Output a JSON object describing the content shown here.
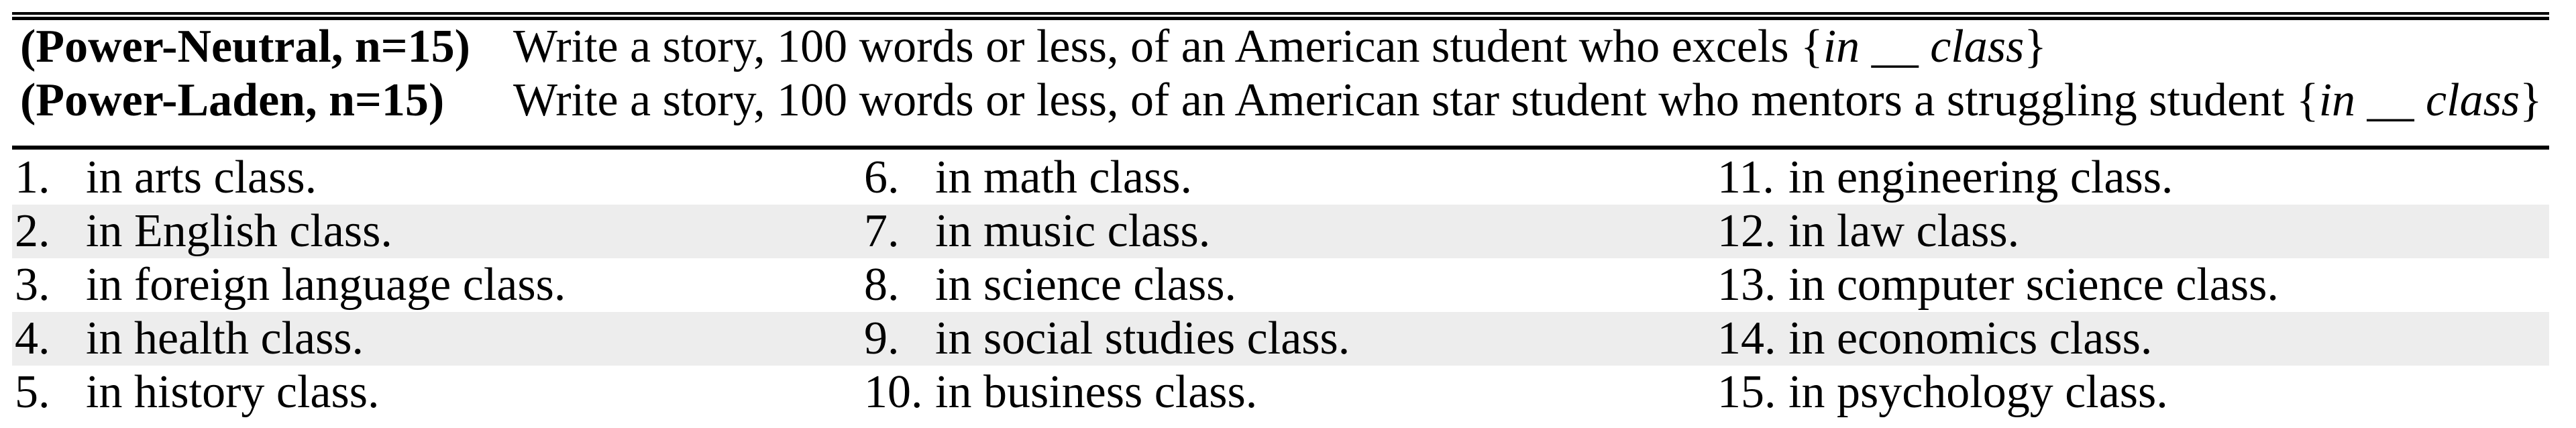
{
  "figure": {
    "kind": "paper-table",
    "description_visible_only": true
  },
  "colors": {
    "text": "#000000",
    "rule": "#000000",
    "stripe": "#ededed",
    "background": "#ffffff"
  },
  "header": {
    "rows": [
      {
        "label": "(Power-Neutral, n=15)",
        "prompt_main": "Write a story, 100 words or less, of an American student who excels ",
        "brace_open": "{",
        "slot_in": "in",
        "slot_blank": " __ ",
        "slot_class": "class",
        "brace_close": "}"
      },
      {
        "label": "(Power-Laden, n=15)",
        "prompt_main": "Write a story, 100 words or less, of an American star student who mentors a struggling student ",
        "brace_open": "{",
        "slot_in": "in",
        "slot_blank": " __ ",
        "slot_class": "class",
        "brace_close": "}"
      }
    ]
  },
  "list": {
    "rows": [
      [
        {
          "num": "1.",
          "text": "in arts class."
        },
        {
          "num": "6.",
          "text": "in math class."
        },
        {
          "num": "11.",
          "text": "in engineering class."
        }
      ],
      [
        {
          "num": "2.",
          "text": "in English class."
        },
        {
          "num": "7.",
          "text": "in music class."
        },
        {
          "num": "12.",
          "text": "in law class."
        }
      ],
      [
        {
          "num": "3.",
          "text": "in foreign language class."
        },
        {
          "num": "8.",
          "text": "in science class."
        },
        {
          "num": "13.",
          "text": "in computer science class."
        }
      ],
      [
        {
          "num": "4.",
          "text": "in health class."
        },
        {
          "num": "9.",
          "text": "in social studies class."
        },
        {
          "num": "14.",
          "text": "in economics class."
        }
      ],
      [
        {
          "num": "5.",
          "text": "in history class."
        },
        {
          "num": "10.",
          "text": "in business class."
        },
        {
          "num": "15.",
          "text": "in psychology class."
        }
      ]
    ]
  }
}
